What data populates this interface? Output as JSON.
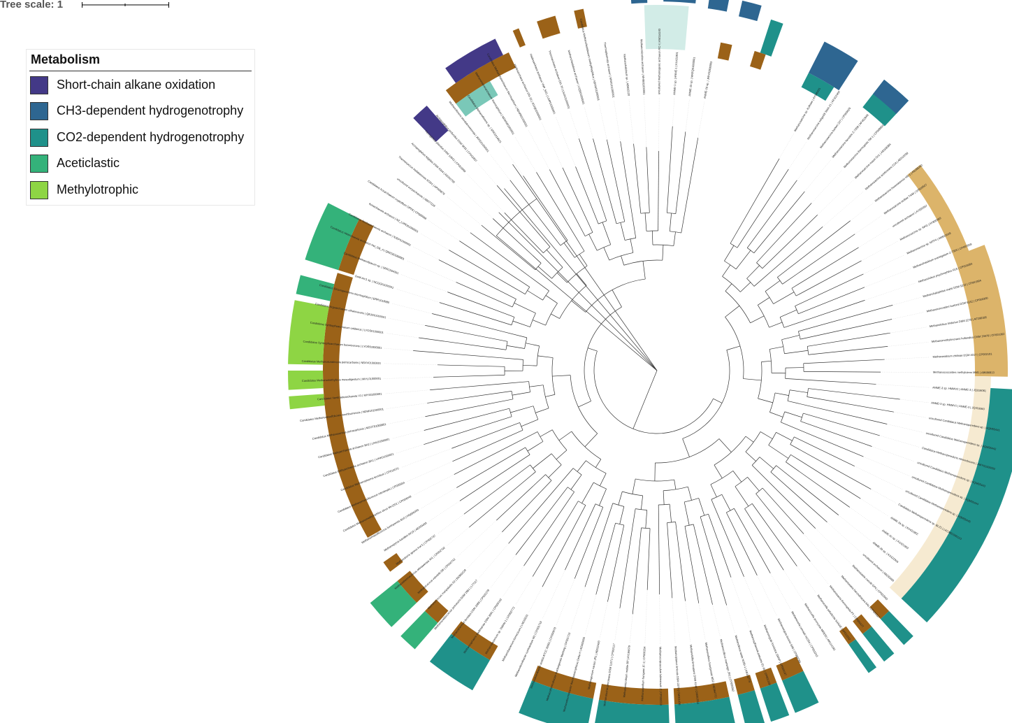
{
  "tree_scale": {
    "label": "Tree scale: 1"
  },
  "legend": {
    "title": "Metabolism",
    "items": [
      {
        "label": "Short-chain alkane oxidation",
        "color": "#433987"
      },
      {
        "label": "CH3-dependent hydrogenotrophy",
        "color": "#2e6691"
      },
      {
        "label": "CO2-dependent hydrogenotrophy",
        "color": "#1f918a"
      },
      {
        "label": "Aceticlastic",
        "color": "#34b27a"
      },
      {
        "label": "Methylotrophic",
        "color": "#8ed544"
      }
    ]
  },
  "ring_colors": {
    "order": "#9b6218",
    "alkane": "#433987",
    "ch3": "#2e6691",
    "co2": "#1f918a",
    "aceticlastic": "#34b27a",
    "methylotrophic": "#8ed544",
    "clade_teal_light": "#7ac8b8",
    "clade_mint": "#d2ece7",
    "clade_tan": "#dcb46a",
    "clade_cream": "#f6ead1"
  },
  "leaf_labels": [
    "Methanosarcina sp. Kolksee | AY946431",
    "Methanosarcina soligelidi SMA-21 | KF312464",
    "Methanosarcina barkeri 227 | CP009526",
    "Methanosarcina lacustris Z-7289 | AF452948",
    "Methanosarcina thermophila TM-1 | CP009501",
    "Methanosarcina mazei Go1 | AE008384",
    "Methanosarcina acetivorans C2A | AE010299",
    "Methanosarcina horonobensis HB-1 | AB288262",
    "Methanosarcina siciliae T4/M | CP009507",
    "uncultured archaeon | AY559357",
    "Methanosarcina sp. WH1 | AY800989",
    "Methanosarcina sp. MTP4 | AM922049",
    "Methanohalobium evestigatum Z-7303 | CP002069",
    "Methanolobus psychrophilus R15 | CP003083",
    "Methanohalophilus mahii DSM 5219 | CP001994",
    "Methanococcoides burtonii DSM 6242 | CP000300",
    "Methanolobus tindarius DSM 2278 | AF290186",
    "Methanomethylovorans hollandica DSM 15978 | CP003362",
    "Methanosalsum zhilinae DSM 4017 | CP002101",
    "Methanococcoides methylutens MM1 | AB686813",
    "ANME-3 sp. HMMV2 | ANME-3 | JQ316061",
    "ANME-3 sp. HMMV1 | ANME-3 | JQ316060",
    "uncultured Candidatus Methanoperedens sp. | AQM55441",
    "uncultured Candidatus Methanoperedens sp. | AQM55442",
    "Candidatus Methanoperedens nitroreducens | JMIY01000002",
    "uncultured Candidatus Methanoperedens sp. | AQM55443",
    "uncultured Candidatus Methanoperedens sp. | AQM55444",
    "uncultured Candidatus Methanoperedens sp. | AQM55445",
    "Candidatus Methanoperedens sp. BLZ1 | LKCM01000123",
    "ANME-2a sp. | KX421902",
    "ANME-2c sp. | KX421903",
    "ANME-2b sp. | KX421904",
    "uncultured archaeon | AB233490",
    "Methanosaeta concilii GP6 | CP002565",
    "Methanosaeta harundinacea 6Ac | CP003117",
    "Methanosaeta thermophila PT | CP000477",
    "Methanocella paludicola SANAE | AP011532",
    "Methanocella arvoryzae MRE50 | AM114193",
    "Methanocella conradii HZ254 | CP003243",
    "Methanoregula boonei 6A8 | CP000780",
    "Methanoregula formicica SMSP | CP003167",
    "Methanosphaerula palustris E1-9c | CP001338",
    "Methanolinea tarda NOBI-1 | AB162774",
    "Methanoculleus marisnigri JR1 | CP000562",
    "Methanoculleus bourgensis MS2 | HE964772",
    "Methanofollis liminatans DSM 4140 | CM001555",
    "Methanoplanus limicola DSM 2279 | CM001436",
    "Methanocorpusculum labreanum Z | CP000559",
    "Methanospirillum hungatei JF-1 | CP000254",
    "Methanomicrobium mobile BP | AY196679",
    "Methanolacinia petrolearia DSM 11571 | CP002117",
    "Methanogenium cariaci JR1 | AB022493",
    "Methanothermobacter thermautotrophicus Delta H | AE000666",
    "Methanothermobacter marburgensis Marburg | CP001710",
    "Methanobrevibacter smithii ATCC 35061 | CP000678",
    "Methanobrevibacter ruminantium M1 | CP001719",
    "Methanobacterium formicicum | LN515531",
    "Methanobacterium sp. SWAN-1 | CP002772",
    "Methanosphaera stadtmanae DSM 3091 | CP000102",
    "Methanothermus fervidus DSM 2088 | CP002278",
    "Methanocaldococcus jannaschii DSM 2661 | L77117",
    "Methanococcus maripaludis S2 | BX950229",
    "Methanococcus vannielii SB | CP000742",
    "Methanothermococcus okinawensis IH1 | CP002792",
    "Methanotorris igneus Kol 5 | CP002737",
    "Methanopyrus kandleri AV19 | AE009439",
    "Methanomassiliicoccus luminyensis B10 | HQ896499",
    "Candidatus Methanomethylophilus alvus Mx1201 | CP004049",
    "Candidatus Methanomassiliicoccus intestinalis | CP005934",
    "Candidatus Methanoplasma termitum | CP010070",
    "Candidatus Bathyarchaeota archaeon BA1 | LIHK01000001",
    "Candidatus Bathyarchaeota archaeon BA2 | LIHL01000001",
    "Candidatus Methanosuratus petracarbonis | MZGT01000001",
    "Candidatus Methanodesulfokores washburnensis | NDWU01000001",
    "Candidatus Verstraetearchaeota V1 | MIYI01000001",
    "Candidatus Methanomethylicus mesodigestum | MIYL01000001",
    "Candidatus Methanosuratincola petrocarbonis | NBXV01000001",
    "Candidatus Syntrophoarchaeum butanivorans | LYOR01000001",
    "Candidatus Syntrophoarchaeum caldarius | LYOS01000001",
    "Candidatus Argoarchaeum ethanivorans | QBJO01000001",
    "Candidatus Ethanoperedens thermophilum | ERR1018080",
    "GoM-Arc1 sp. | NCGG01000001",
    "Candidatus Methanoliparum sp. | SRR1564391",
    "Candidatus Helarchaeota archaeon Hel_GB_A | QMZS01000001",
    "Candidatus Nezhaarchaeota archaeon | NJEF01000001",
    "Korarchaeota archaeon | NZ_LVRO01000001",
    "Candidatus Korarchaeum cryptofilum OPF8 | CP000968",
    "uncultured euryarchaeote | AB077226",
    "Thermococcus kodakarensis KOD1 | AP006878",
    "Archaeoglobus fulgidus DSM 4304 | AE000782",
    "Ferroglobus placidus DSM 10642 | CP001899",
    "Archaeoglobus profundus DSM 5631 | CP001857",
    "Methanoflorens stordalenmirensis | JRFE01000001",
    "Candidatus Methanoflorens sp. | SRR1014621",
    "Methanonatronarchaeum thermophilum | NDWM01000001",
    "Candidatus Methanohalarchaeum thermophilum | NDWN01000001",
    "Hadesarchaea archaeon DG-33 | JOJQ01000001",
    "Hadesarchaea archaeon YNP_N21 | LIHP01000001",
    "Theionarchaea archaeon DG-70 | LNJA01000001",
    "Methanofastidiosa archaeon | LIQB01000001",
    "Candidatus Methanofastidiosum methylthiophilus | NBXW01000001",
    "Thermoplasmata archaeon | MNXU01000001",
    "Methanohalobium sp. | AB932120",
    "Methanomicrobia archaeon | MHIB01000001",
    "uncultured methanogenic archaeon RC-I | AM114193",
    "ANME-1 sp. | ANME-1 | KX421901",
    "ANME-1b sp. | MKEQ01000001",
    "ANME-2d sp. | JMIY01000003"
  ]
}
